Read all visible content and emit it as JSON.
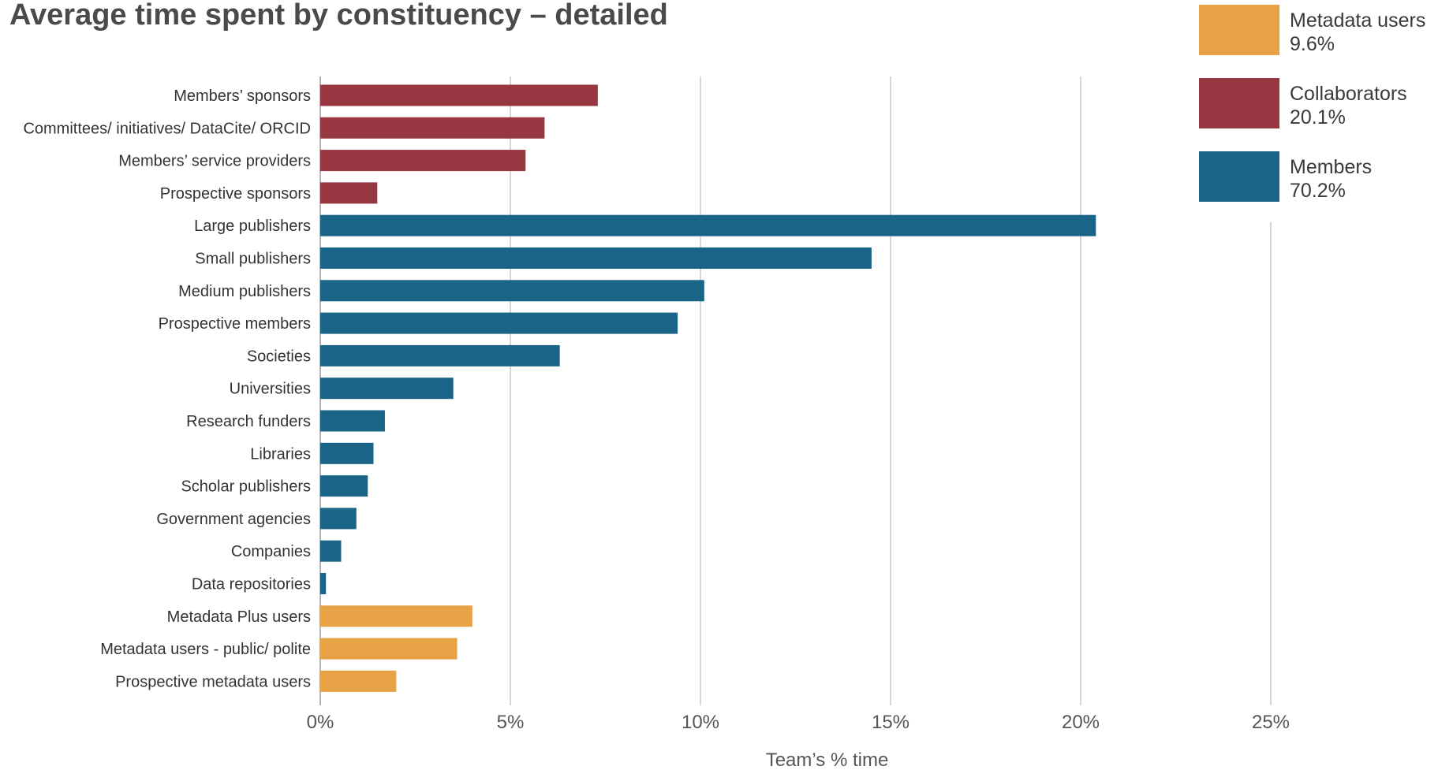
{
  "title": "Average time spent by constituency – detailed",
  "chart_data": {
    "type": "bar",
    "orientation": "horizontal",
    "title": "Average time spent by constituency – detailed",
    "xlabel": "Team’s % time",
    "ylabel": "",
    "xlim": [
      0,
      25
    ],
    "x_ticks": [
      0,
      5,
      10,
      15,
      20,
      25
    ],
    "x_tick_labels": [
      "0%",
      "5%",
      "10%",
      "15%",
      "20%",
      "25%"
    ],
    "grid": true,
    "legend_position": "top-right",
    "groups": [
      {
        "name": "Metadata users",
        "share": "9.6%",
        "color": "#E8A246"
      },
      {
        "name": "Collaborators",
        "share": "20.1%",
        "color": "#973741"
      },
      {
        "name": "Members",
        "share": "70.2%",
        "color": "#1A6587"
      }
    ],
    "bars": [
      {
        "label": "Members’ sponsors",
        "value": 7.3,
        "group": "Collaborators"
      },
      {
        "label": "Committees/ initiatives/ DataCite/ ORCID",
        "value": 5.9,
        "group": "Collaborators"
      },
      {
        "label": "Members’ service providers",
        "value": 5.4,
        "group": "Collaborators"
      },
      {
        "label": "Prospective sponsors",
        "value": 1.5,
        "group": "Collaborators"
      },
      {
        "label": "Large publishers",
        "value": 20.4,
        "group": "Members"
      },
      {
        "label": "Small publishers",
        "value": 14.5,
        "group": "Members"
      },
      {
        "label": "Medium publishers",
        "value": 10.1,
        "group": "Members"
      },
      {
        "label": "Prospective members",
        "value": 9.4,
        "group": "Members"
      },
      {
        "label": "Societies",
        "value": 6.3,
        "group": "Members"
      },
      {
        "label": "Universities",
        "value": 3.5,
        "group": "Members"
      },
      {
        "label": "Research funders",
        "value": 1.7,
        "group": "Members"
      },
      {
        "label": "Libraries",
        "value": 1.4,
        "group": "Members"
      },
      {
        "label": "Scholar publishers",
        "value": 1.25,
        "group": "Members"
      },
      {
        "label": "Government agencies",
        "value": 0.95,
        "group": "Members"
      },
      {
        "label": "Companies",
        "value": 0.55,
        "group": "Members"
      },
      {
        "label": "Data repositories",
        "value": 0.15,
        "group": "Members"
      },
      {
        "label": "Metadata Plus users",
        "value": 4.0,
        "group": "Metadata users"
      },
      {
        "label": "Metadata users - public/ polite",
        "value": 3.6,
        "group": "Metadata users"
      },
      {
        "label": "Prospective metadata users",
        "value": 2.0,
        "group": "Metadata users"
      }
    ]
  }
}
